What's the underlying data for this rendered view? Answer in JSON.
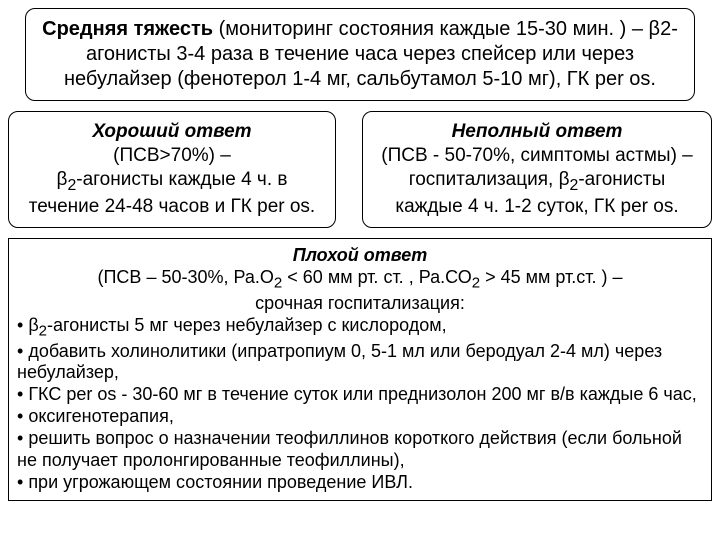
{
  "top": {
    "title": "Средняя тяжесть",
    "rest": " (мониторинг состояния каждые 15-30 мин. ) – β2-агонисты 3-4 раза в течение часа через спейсер или через небулайзер  (фенотерол 1-4 мг, сальбутамол 5-10 мг), ГК per os."
  },
  "left": {
    "title": "Хороший ответ",
    "l1a": "(ПСВ",
    "l1b": "70%) –",
    "l2": "β",
    "l2sub": "2",
    "l2rest": "-агонисты каждые 4 ч. в течение 24-48 часов и ГК per os."
  },
  "right": {
    "title": "Неполный ответ",
    "l1": "(ПСВ -  50-70%, симптомы астмы) – госпитализация,  β",
    "l1sub": "2",
    "l1rest": "-агонисты каждые 4 ч. 1-2 суток, ГК per os."
  },
  "bottom": {
    "title": "Плохой ответ",
    "h1a": "(ПСВ – 50-30%,  Ра.О",
    "h1sub1": "2",
    "h1b": " 60 мм рт. ст. , Ра.СО",
    "h1sub2": "2",
    "h1c": " 45 мм рт.ст. ) –",
    "h2": "срочная госпитализация:",
    "b1a": "β",
    "b1sub": "2",
    "b1b": "-агонисты 5 мг через небулайзер с кислородом,",
    "b2": "добавить холинолитики (ипратропиум 0, 5-1 мл или беродуал 2-4 мл) через небулайзер,",
    "b3": "ГКС per os - 30-60 мг в течение суток или преднизолон 200 мг в/в каждые 6 час,",
    "b4": "оксигенотерапия,",
    "b5": "решить вопрос о назначении теофиллинов короткого действия (если больной не получает пролонгированные теофиллины),",
    "b6": "при угрожающем состоянии проведение ИВЛ."
  }
}
